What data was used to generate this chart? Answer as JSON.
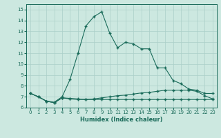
{
  "xlabel": "Humidex (Indice chaleur)",
  "ylabel": "",
  "bg_color": "#cce8e0",
  "grid_color": "#aacfc8",
  "line_color": "#1a6b5a",
  "x_ticks": [
    0,
    1,
    2,
    3,
    4,
    5,
    6,
    7,
    8,
    9,
    10,
    11,
    12,
    13,
    14,
    15,
    16,
    17,
    18,
    19,
    20,
    21,
    22,
    23
  ],
  "ylim": [
    6,
    15.5
  ],
  "xlim": [
    -0.5,
    23.5
  ],
  "series1_x": [
    0,
    1,
    2,
    3,
    4,
    5,
    6,
    7,
    8,
    9,
    10,
    11,
    12,
    13,
    14,
    15,
    16,
    17,
    18,
    19,
    20,
    21,
    22,
    23
  ],
  "series1_y": [
    7.3,
    7.0,
    6.6,
    6.5,
    7.0,
    8.6,
    11.0,
    13.5,
    14.35,
    14.8,
    12.85,
    11.5,
    12.0,
    11.85,
    11.4,
    11.4,
    9.65,
    9.65,
    8.5,
    8.2,
    7.7,
    7.6,
    7.3,
    7.3
  ],
  "series2_x": [
    0,
    1,
    2,
    3,
    4,
    5,
    6,
    7,
    8,
    9,
    10,
    11,
    12,
    13,
    14,
    15,
    16,
    17,
    18,
    19,
    20,
    21,
    22,
    23
  ],
  "series2_y": [
    7.3,
    7.0,
    6.6,
    6.45,
    6.9,
    6.8,
    6.75,
    6.75,
    6.8,
    6.9,
    7.0,
    7.1,
    7.15,
    7.25,
    7.35,
    7.4,
    7.5,
    7.6,
    7.6,
    7.6,
    7.6,
    7.5,
    7.1,
    6.8
  ],
  "series3_x": [
    0,
    1,
    2,
    3,
    4,
    5,
    6,
    7,
    8,
    9,
    10,
    11,
    12,
    13,
    14,
    15,
    16,
    17,
    18,
    19,
    20,
    21,
    22,
    23
  ],
  "series3_y": [
    7.3,
    7.0,
    6.6,
    6.45,
    6.9,
    6.85,
    6.8,
    6.75,
    6.75,
    6.75,
    6.75,
    6.75,
    6.75,
    6.75,
    6.75,
    6.75,
    6.75,
    6.75,
    6.75,
    6.75,
    6.75,
    6.75,
    6.75,
    6.75
  ]
}
